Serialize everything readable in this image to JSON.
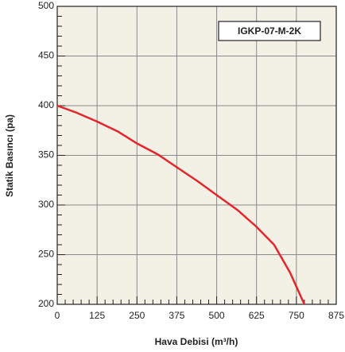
{
  "chart_data": {
    "type": "line",
    "legend_label": "IGKP-07-M-2K",
    "x_label": "Hava Debisi (m³/h)",
    "y_label": "Statik Basıncı (pa)",
    "series": [
      {
        "name": "IGKP-07-M-2K",
        "color": "#e3262b",
        "x": [
          0,
          60,
          125,
          190,
          250,
          315,
          375,
          440,
          500,
          565,
          625,
          680,
          730,
          775
        ],
        "values": [
          400,
          393,
          384,
          374,
          362,
          351,
          338,
          324,
          310,
          295,
          278,
          260,
          232,
          200
        ]
      }
    ],
    "xlim": [
      0,
      875
    ],
    "xticks": [
      0,
      125,
      250,
      375,
      500,
      625,
      750,
      875
    ],
    "ylim": [
      200,
      500
    ],
    "yticks": [
      200,
      250,
      300,
      350,
      400,
      450,
      500
    ],
    "grid": true,
    "legend": "upper right"
  }
}
